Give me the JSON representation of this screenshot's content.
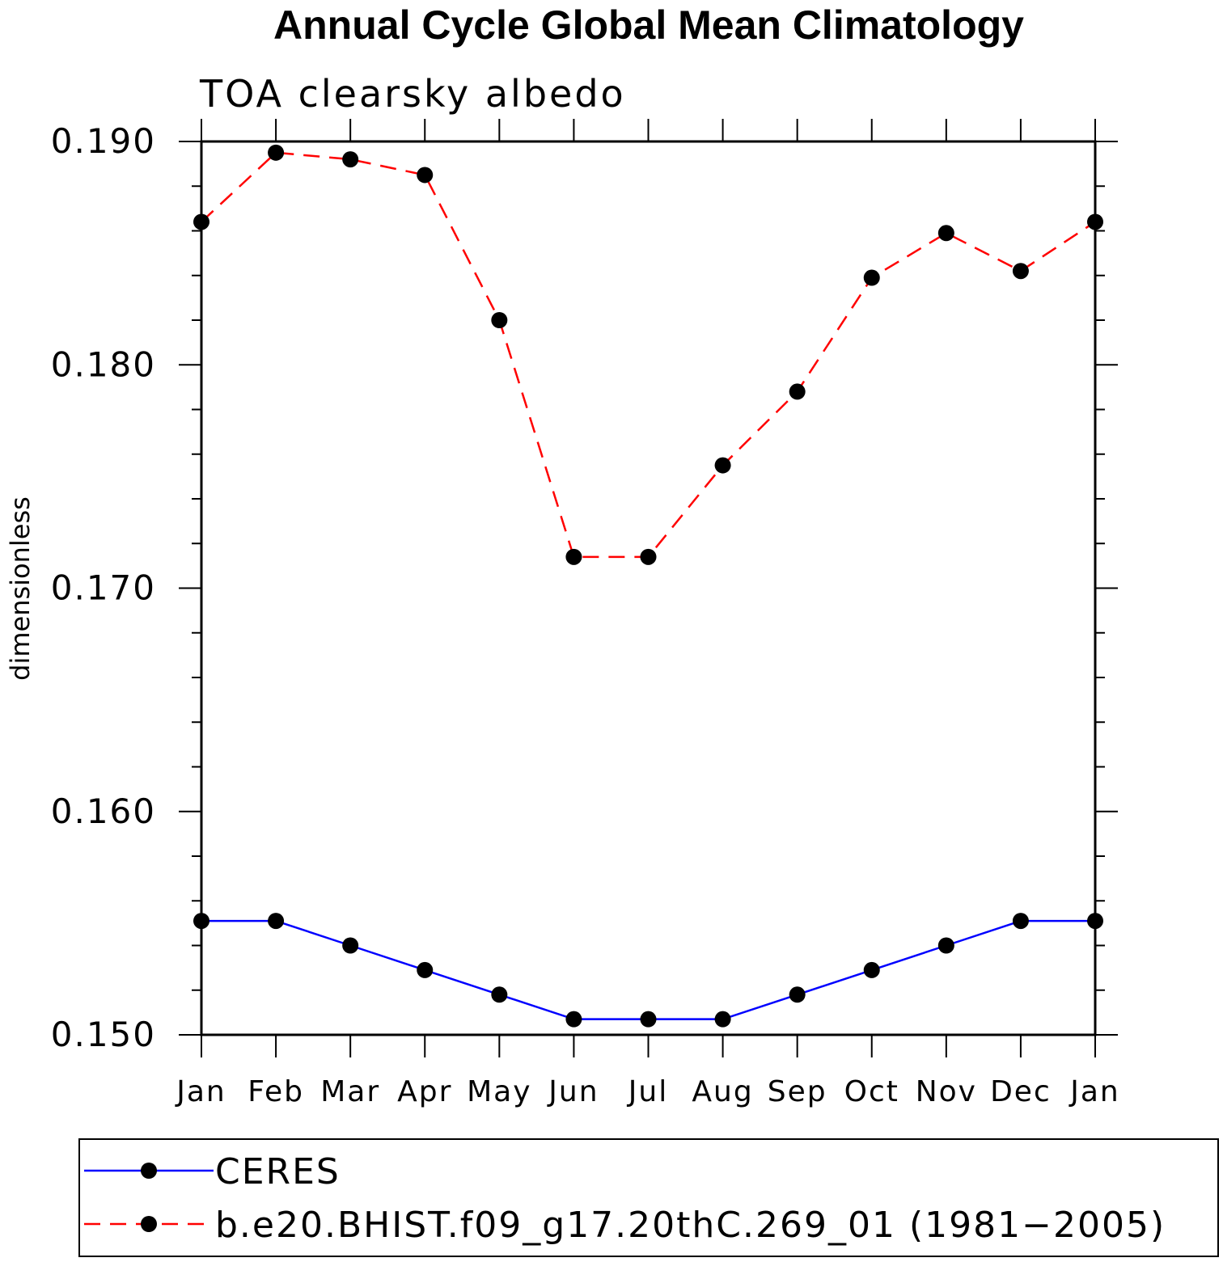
{
  "chart_data": {
    "type": "line",
    "title": "Annual Cycle Global Mean Climatology",
    "subtitle": "TOA clearsky albedo",
    "ylabel": "dimensionless",
    "xlabel": "",
    "categories": [
      "Jan",
      "Feb",
      "Mar",
      "Apr",
      "May",
      "Jun",
      "Jul",
      "Aug",
      "Sep",
      "Oct",
      "Nov",
      "Dec",
      "Jan"
    ],
    "ylim": [
      0.15,
      0.19
    ],
    "yticks": [
      "0.150",
      "0.160",
      "0.170",
      "0.180",
      "0.190"
    ],
    "grid": false,
    "legend_position": "bottom",
    "series": [
      {
        "name": "CERES",
        "color": "#0000ff",
        "line_style": "solid",
        "marker": "filled-circle",
        "values": [
          0.1551,
          0.1551,
          0.154,
          0.1529,
          0.1518,
          0.1507,
          0.1507,
          0.1507,
          0.1518,
          0.1529,
          0.154,
          0.1551,
          0.1551
        ]
      },
      {
        "name": "b.e20.BHIST.f09_g17.20thC.269_01 (1981−2005)",
        "color": "#ff0000",
        "line_style": "dashed",
        "marker": "filled-circle",
        "values": [
          0.1864,
          0.1895,
          0.1892,
          0.1885,
          0.182,
          0.1714,
          0.1714,
          0.1755,
          0.1788,
          0.1839,
          0.1859,
          0.1842,
          0.1864
        ]
      }
    ]
  }
}
